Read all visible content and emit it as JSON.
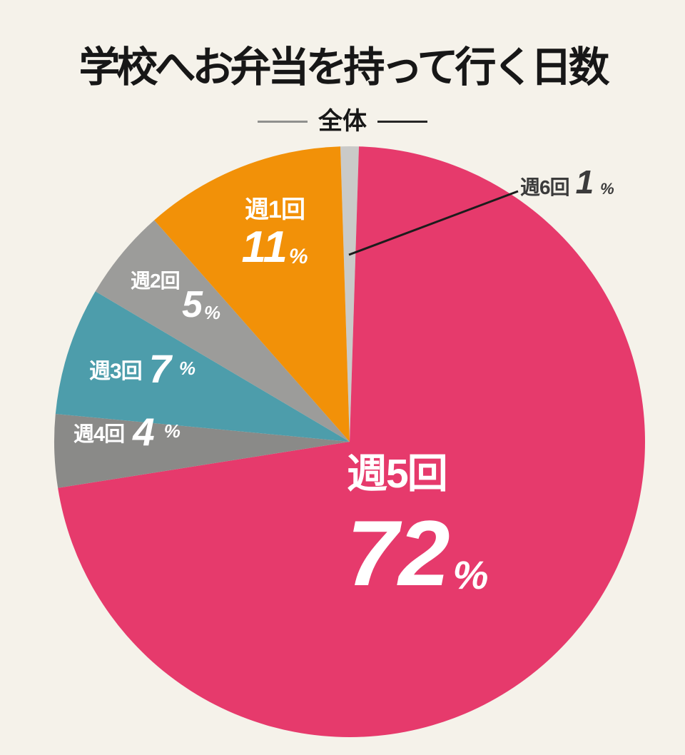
{
  "page": {
    "background_color": "#F5F2EA"
  },
  "header": {
    "title": "学校へお弁当を持って行く日数",
    "subtitle": "全体"
  },
  "chart_data": {
    "type": "pie",
    "title": "学校へお弁当を持って行く日数",
    "subtitle": "全体",
    "unit": "%",
    "direction": "clockwise",
    "start_angle_deg": -1.8,
    "slices": [
      {
        "key": "week6",
        "label": "週6回",
        "value": 1,
        "color": "#CACAC8",
        "text_color": "#3B3B3B",
        "label_placement": "outside-callout"
      },
      {
        "key": "week5",
        "label": "週5回",
        "value": 72,
        "color": "#E63A6C",
        "text_color": "#FFFFFF",
        "label_placement": "inside"
      },
      {
        "key": "week4",
        "label": "週4回",
        "value": 4,
        "color": "#8A8A88",
        "text_color": "#FFFFFF",
        "label_placement": "inside"
      },
      {
        "key": "week3",
        "label": "週3回",
        "value": 7,
        "color": "#4D9DAB",
        "text_color": "#FFFFFF",
        "label_placement": "inside"
      },
      {
        "key": "week2",
        "label": "週2回",
        "value": 5,
        "color": "#9C9C9A",
        "text_color": "#FFFFFF",
        "label_placement": "inside"
      },
      {
        "key": "week1",
        "label": "週1回",
        "value": 11,
        "color": "#F29108",
        "text_color": "#FFFFFF",
        "label_placement": "inside"
      }
    ],
    "callout": {
      "line_color": "#1C1C1C"
    }
  }
}
